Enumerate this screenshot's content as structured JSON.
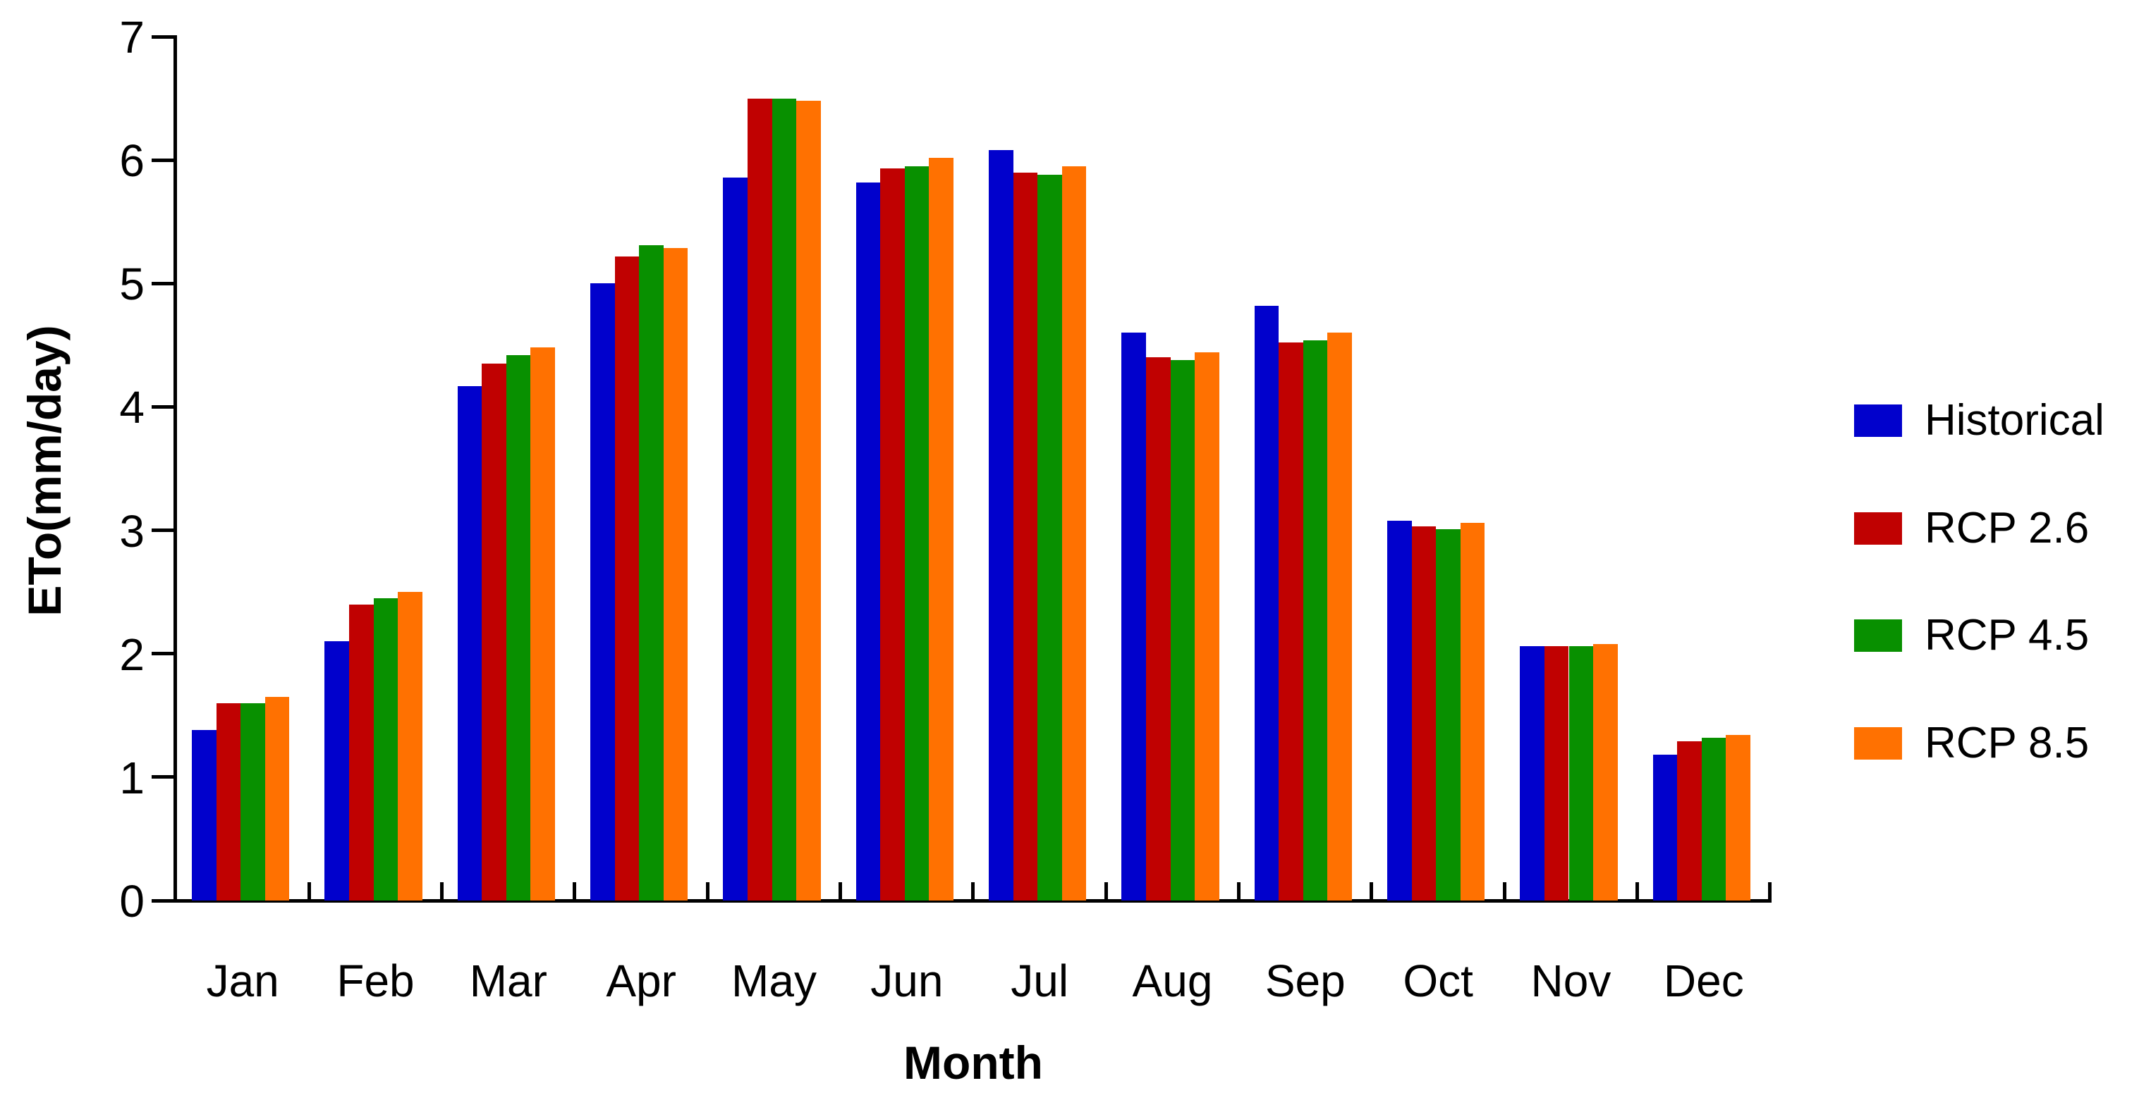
{
  "figure": {
    "background_color": "#FFFFFF",
    "axis_color": "#000000",
    "text_color": "#000000"
  },
  "chart_data": {
    "type": "bar",
    "title": "",
    "xlabel": "Month",
    "ylabel": "ETo(mm/day)",
    "categories": [
      "Jan",
      "Feb",
      "Mar",
      "Apr",
      "May",
      "Jun",
      "Jul",
      "Aug",
      "Sep",
      "Oct",
      "Nov",
      "Dec"
    ],
    "series": [
      {
        "name": "Historical",
        "color": "#0101CC",
        "values": [
          1.38,
          2.1,
          4.17,
          5.0,
          5.86,
          5.82,
          6.08,
          4.6,
          4.82,
          3.08,
          2.06,
          1.18
        ]
      },
      {
        "name": "RCP 2.6",
        "color": "#C00101",
        "values": [
          1.6,
          2.4,
          4.35,
          5.22,
          6.5,
          5.93,
          5.9,
          4.4,
          4.52,
          3.03,
          2.06,
          1.29
        ]
      },
      {
        "name": "RCP 4.5",
        "color": "#089000",
        "values": [
          1.6,
          2.45,
          4.42,
          5.31,
          6.5,
          5.95,
          5.88,
          4.38,
          4.54,
          3.01,
          2.06,
          1.32
        ]
      },
      {
        "name": "RCP 8.5",
        "color": "#FF7101",
        "values": [
          1.65,
          2.5,
          4.48,
          5.29,
          6.48,
          6.02,
          5.95,
          4.44,
          4.6,
          3.06,
          2.08,
          1.34
        ]
      }
    ],
    "ylim": [
      0,
      7
    ],
    "yticks": [
      0,
      1,
      2,
      3,
      4,
      5,
      6,
      7
    ],
    "grid": false,
    "legend_position": "right",
    "legend_marker": "square",
    "bar_gap_within_group": 0,
    "tick_style": "y-outside, x-inside"
  }
}
